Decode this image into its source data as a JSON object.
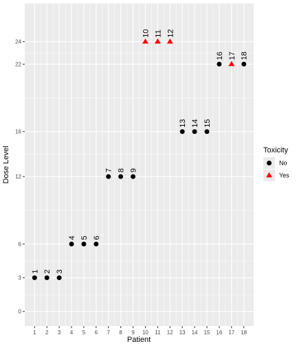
{
  "chart_data": {
    "type": "scatter",
    "xlabel": "Patient",
    "ylabel": "Dose Level",
    "x_ticks": [
      1,
      2,
      3,
      4,
      5,
      6,
      7,
      8,
      9,
      10,
      11,
      12,
      13,
      14,
      15,
      16,
      17,
      18
    ],
    "y_ticks": [
      0,
      3,
      6,
      12,
      16,
      22,
      24
    ],
    "xlim": [
      0.2,
      18.8
    ],
    "ylim": [
      -1.3,
      27.4
    ],
    "grid": true,
    "legend": {
      "title": "Toxicity",
      "position": "right",
      "entries": [
        {
          "label": "No",
          "shape": "circle",
          "color": "#000000"
        },
        {
          "label": "Yes",
          "shape": "triangle",
          "color": "#ff0000"
        }
      ]
    },
    "points": [
      {
        "patient": 1,
        "dose": 3,
        "toxicity": "No",
        "label": "1"
      },
      {
        "patient": 2,
        "dose": 3,
        "toxicity": "No",
        "label": "2"
      },
      {
        "patient": 3,
        "dose": 3,
        "toxicity": "No",
        "label": "3"
      },
      {
        "patient": 4,
        "dose": 6,
        "toxicity": "No",
        "label": "4"
      },
      {
        "patient": 5,
        "dose": 6,
        "toxicity": "No",
        "label": "5"
      },
      {
        "patient": 6,
        "dose": 6,
        "toxicity": "No",
        "label": "6"
      },
      {
        "patient": 7,
        "dose": 12,
        "toxicity": "No",
        "label": "7"
      },
      {
        "patient": 8,
        "dose": 12,
        "toxicity": "No",
        "label": "8"
      },
      {
        "patient": 9,
        "dose": 12,
        "toxicity": "No",
        "label": "9"
      },
      {
        "patient": 10,
        "dose": 24,
        "toxicity": "Yes",
        "label": "10"
      },
      {
        "patient": 11,
        "dose": 24,
        "toxicity": "Yes",
        "label": "11"
      },
      {
        "patient": 12,
        "dose": 24,
        "toxicity": "Yes",
        "label": "12"
      },
      {
        "patient": 13,
        "dose": 16,
        "toxicity": "No",
        "label": "13"
      },
      {
        "patient": 14,
        "dose": 16,
        "toxicity": "No",
        "label": "14"
      },
      {
        "patient": 15,
        "dose": 16,
        "toxicity": "No",
        "label": "15"
      },
      {
        "patient": 16,
        "dose": 22,
        "toxicity": "No",
        "label": "16"
      },
      {
        "patient": 17,
        "dose": 22,
        "toxicity": "Yes",
        "label": "17"
      },
      {
        "patient": 18,
        "dose": 22,
        "toxicity": "No",
        "label": "18"
      }
    ]
  },
  "colors": {
    "panel": "#ebebeb",
    "grid": "#ffffff",
    "no_toxicity": "#000000",
    "yes_toxicity": "#ff0000"
  }
}
